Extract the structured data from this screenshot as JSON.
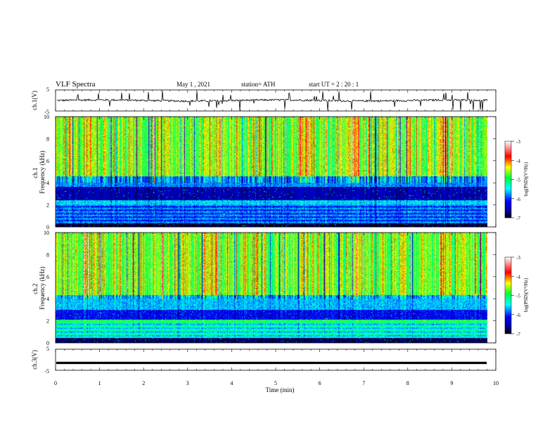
{
  "header": {
    "title": "VLF  Spectra",
    "date": "May 1  , 2021",
    "station": "station= ATH",
    "start": "start  UT  =   2  : 20 : 1"
  },
  "chart_data": [
    {
      "type": "line",
      "id": "ch1-waveform",
      "ylabel": "ch.1(V)",
      "ylim": [
        -5,
        5
      ],
      "yticks": [
        "5",
        "-5"
      ],
      "xlim": [
        0,
        10
      ],
      "note": "noisy waveform centred near 0 V with spikes"
    },
    {
      "type": "heatmap",
      "id": "ch1-spectrogram",
      "ylabel": "ch.1\nFrequency (kHz)",
      "ylabel_lines": [
        "ch.1",
        "Frequency  (kHz)"
      ],
      "ylim": [
        0,
        10
      ],
      "yticks": [
        "0",
        "2",
        "4",
        "6",
        "8",
        "10"
      ],
      "xlim": [
        0,
        9.8
      ],
      "colorbar": {
        "label": "log(PSD)(V²/Hz)",
        "range": [
          -7,
          -3
        ],
        "ticks": [
          "-3",
          "-4",
          "-5",
          "-6",
          "-7"
        ]
      }
    },
    {
      "type": "heatmap",
      "id": "ch2-spectrogram",
      "ylabel": "ch.2\nFrequency (kHz)",
      "ylabel_lines": [
        "ch.2",
        "Frequency  (kHz)"
      ],
      "ylim": [
        0,
        10
      ],
      "yticks": [
        "0",
        "2",
        "4",
        "6",
        "8",
        "10"
      ],
      "xlim": [
        0,
        9.8
      ],
      "colorbar": {
        "label": "log(PSD)(V²/Hz)",
        "range": [
          -7,
          -3
        ],
        "ticks": [
          "-3",
          "-4",
          "-5",
          "-6",
          "-7"
        ]
      }
    },
    {
      "type": "line",
      "id": "ch3-waveform",
      "ylabel": "ch.3(V)",
      "ylim": [
        -5,
        5
      ],
      "yticks": [
        "5",
        "-5"
      ],
      "xlim": [
        0,
        10
      ],
      "note": "flat thick trace at about -1.5 V"
    }
  ],
  "xaxis": {
    "label": "Time  (min)",
    "ticks": [
      "0",
      "1",
      "2",
      "3",
      "4",
      "5",
      "6",
      "7",
      "8",
      "9",
      "10"
    ],
    "range": [
      0,
      10
    ]
  },
  "colors": {
    "scale": [
      "#000000",
      "#0000ff",
      "#00ffff",
      "#00ff00",
      "#ffff00",
      "#ff0000",
      "#ffffff"
    ]
  }
}
